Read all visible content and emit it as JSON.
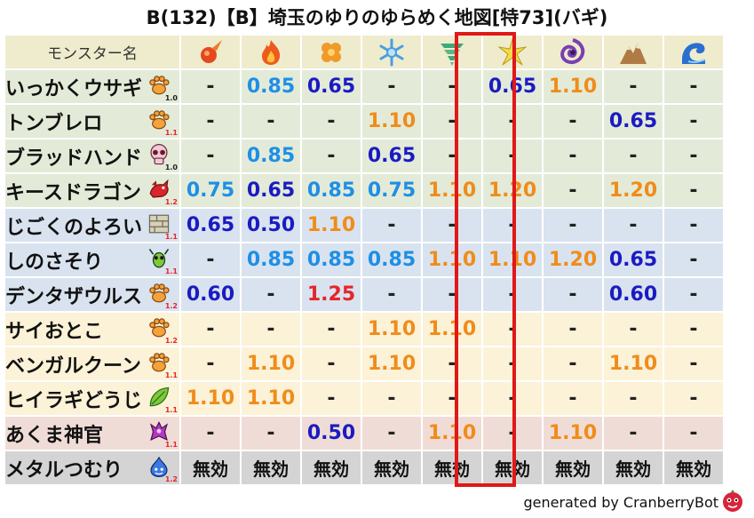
{
  "title": "B(132)【B】埼玉のゆりのゆらめく地図[特73](バギ)",
  "header_label": "モンスター名",
  "columns": [
    {
      "icon": "fire-orb-icon",
      "color": "#e5481e"
    },
    {
      "icon": "flame-icon",
      "color": "#ee5a1e"
    },
    {
      "icon": "clover-icon",
      "color": "#f09a2a"
    },
    {
      "icon": "ice-crystal-icon",
      "color": "#4a9ee0"
    },
    {
      "icon": "tornado-icon",
      "color": "#3fa77a"
    },
    {
      "icon": "lightning-icon",
      "color": "#e8cc2a"
    },
    {
      "icon": "dark-vortex-icon",
      "color": "#7a3fb0"
    },
    {
      "icon": "mountain-icon",
      "color": "#b07a45"
    },
    {
      "icon": "water-wave-icon",
      "color": "#2a6ed0"
    }
  ],
  "highlight_column_index": 4,
  "rows": [
    {
      "name": "いっかくウサギ",
      "type": "paw-icon",
      "ver": "1.0",
      "ver_color": "#222222",
      "bg": "green",
      "vals": [
        "-",
        "0.85",
        "0.65",
        "-",
        "-",
        "0.65",
        "1.10",
        "-",
        "-"
      ]
    },
    {
      "name": "トンブレロ",
      "type": "paw-icon",
      "ver": "1.1",
      "ver_color": "#e5252a",
      "bg": "green",
      "vals": [
        "-",
        "-",
        "-",
        "1.10",
        "-",
        "-",
        "-",
        "0.65",
        "-"
      ]
    },
    {
      "name": "ブラッドハンド",
      "type": "skull-icon",
      "ver": "1.0",
      "ver_color": "#222222",
      "bg": "green",
      "vals": [
        "-",
        "0.85",
        "-",
        "0.65",
        "-",
        "-",
        "-",
        "-",
        "-"
      ]
    },
    {
      "name": "キースドラゴン",
      "type": "dragon-icon",
      "ver": "1.2",
      "ver_color": "#e5252a",
      "bg": "green",
      "vals": [
        "0.75",
        "0.65",
        "0.85",
        "0.75",
        "1.10",
        "1.20",
        "-",
        "1.20",
        "-"
      ]
    },
    {
      "name": "じごくのよろい",
      "type": "brick-icon",
      "ver": "1.1",
      "ver_color": "#e5252a",
      "bg": "blue",
      "vals": [
        "0.65",
        "0.50",
        "1.10",
        "-",
        "-",
        "-",
        "-",
        "-",
        "-"
      ]
    },
    {
      "name": "しのさそり",
      "type": "insect-icon",
      "ver": "1.1",
      "ver_color": "#e5252a",
      "bg": "blue",
      "vals": [
        "-",
        "0.85",
        "0.85",
        "0.85",
        "1.10",
        "1.10",
        "1.20",
        "0.65",
        "-"
      ]
    },
    {
      "name": "デンタザウルス",
      "type": "paw-icon",
      "ver": "1.2",
      "ver_color": "#e5252a",
      "bg": "blue",
      "vals": [
        "0.60",
        "-",
        "1.25",
        "-",
        "-",
        "-",
        "-",
        "0.60",
        "-"
      ]
    },
    {
      "name": "サイおとこ",
      "type": "paw-icon",
      "ver": "1.2",
      "ver_color": "#e5252a",
      "bg": "yellow",
      "vals": [
        "-",
        "-",
        "-",
        "1.10",
        "1.10",
        "-",
        "-",
        "-",
        "-"
      ]
    },
    {
      "name": "ベンガルクーン",
      "type": "paw-icon",
      "ver": "1.1",
      "ver_color": "#e5252a",
      "bg": "yellow",
      "vals": [
        "-",
        "1.10",
        "-",
        "1.10",
        "-",
        "-",
        "-",
        "1.10",
        "-"
      ]
    },
    {
      "name": "ヒイラギどうじ",
      "type": "leaf-icon",
      "ver": "1.1",
      "ver_color": "#e5252a",
      "bg": "yellow",
      "vals": [
        "1.10",
        "1.10",
        "-",
        "-",
        "-",
        "-",
        "-",
        "-",
        "-"
      ]
    },
    {
      "name": "あくま神官",
      "type": "devil-icon",
      "ver": "1.1",
      "ver_color": "#e5252a",
      "bg": "pink",
      "vals": [
        "-",
        "-",
        "0.50",
        "-",
        "1.10",
        "-",
        "1.10",
        "-",
        "-"
      ]
    },
    {
      "name": "メタルつむり",
      "type": "slime-icon",
      "ver": "1.2",
      "ver_color": "#e5252a",
      "bg": "gray",
      "vals": [
        "無効",
        "無効",
        "無効",
        "無効",
        "無効",
        "無効",
        "無効",
        "無効",
        "無効"
      ]
    }
  ],
  "footer": "generated by CranberryBot"
}
